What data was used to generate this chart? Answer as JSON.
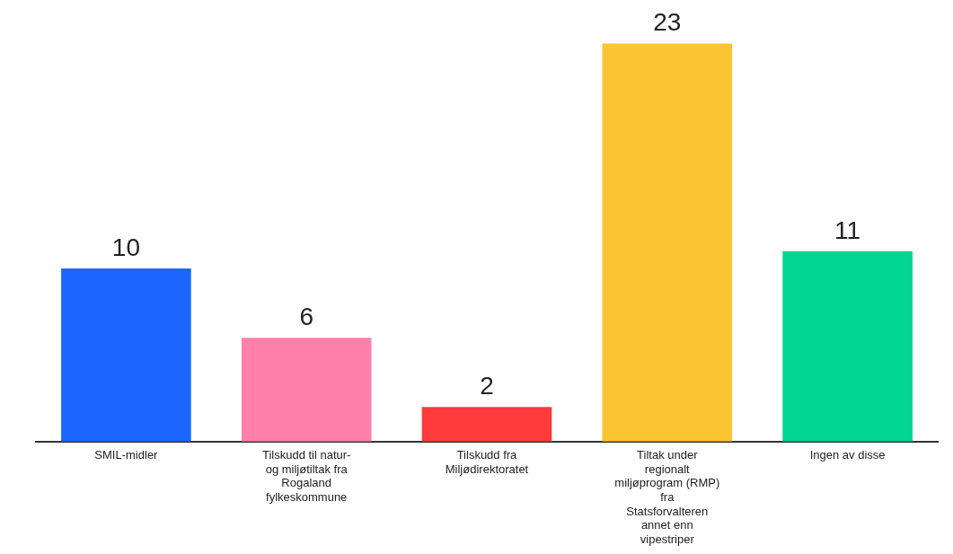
{
  "chart_data": {
    "type": "bar",
    "data_labels": true,
    "grid": false,
    "legend": false,
    "categories": [
      "SMIL-midler",
      "Tilskudd til natur- og miljøtiltak fra Rogaland fylkeskommune",
      "Tilskudd fra Miljødirektoratet",
      "Tiltak under regionalt miljøprogram (RMP) fra Statsforvalteren annet enn vipestriper",
      "Ingen av disse"
    ],
    "values": [
      10,
      6,
      2,
      23,
      11
    ],
    "colors": [
      "#1a66ff",
      "#ff80aa",
      "#ff3b3b",
      "#fbc531",
      "#00d68f"
    ]
  }
}
